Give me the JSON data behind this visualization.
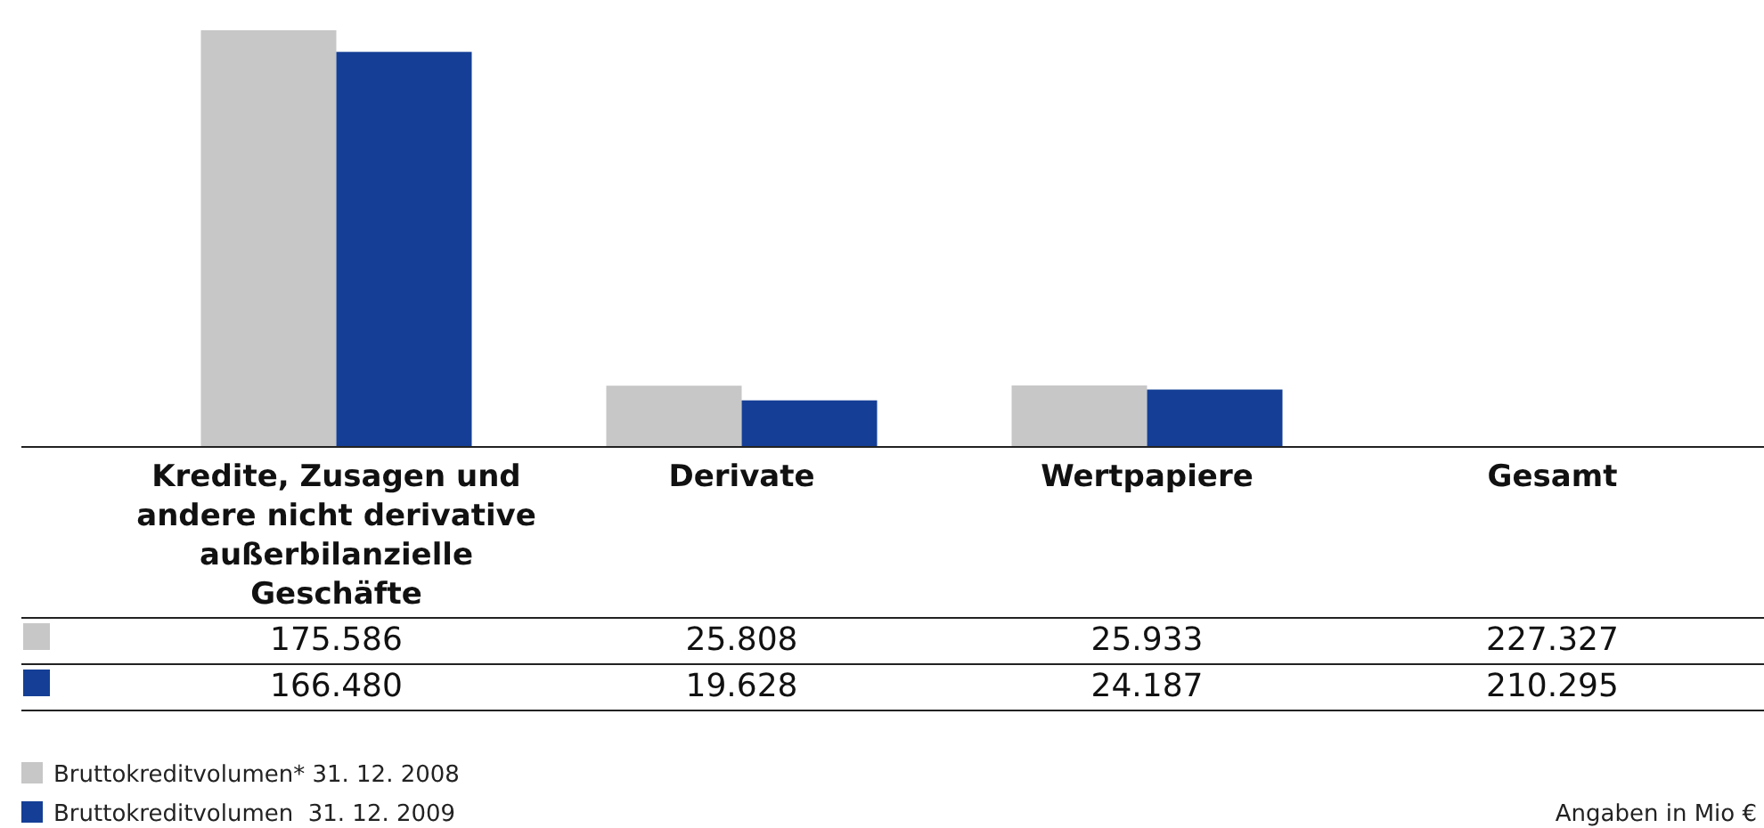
{
  "chart_data": {
    "type": "bar",
    "relative": false,
    "categories": [
      "Kredite, Zusagen und andere nicht derivative außerbilanzielle Geschäfte",
      "Derivate",
      "Wertpapiere",
      "Gesamt"
    ],
    "series": [
      {
        "name": "Bruttokreditvolumen* 31. 12. 2008",
        "color": "#c6c7c6",
        "values": [
          175586,
          25808,
          25933,
          null
        ],
        "value_labels": [
          "175.586",
          "25.808",
          "25.933",
          "227.327"
        ]
      },
      {
        "name": "Bruttokreditvolumen  31. 12. 2009",
        "color": "#153f96",
        "values": [
          166480,
          19628,
          24187,
          null
        ],
        "value_labels": [
          "166.480",
          "19.628",
          "24.187",
          "210.295"
        ]
      }
    ],
    "legend": "bottom left",
    "annotations": [
      "Angaben in Mio €"
    ]
  }
}
